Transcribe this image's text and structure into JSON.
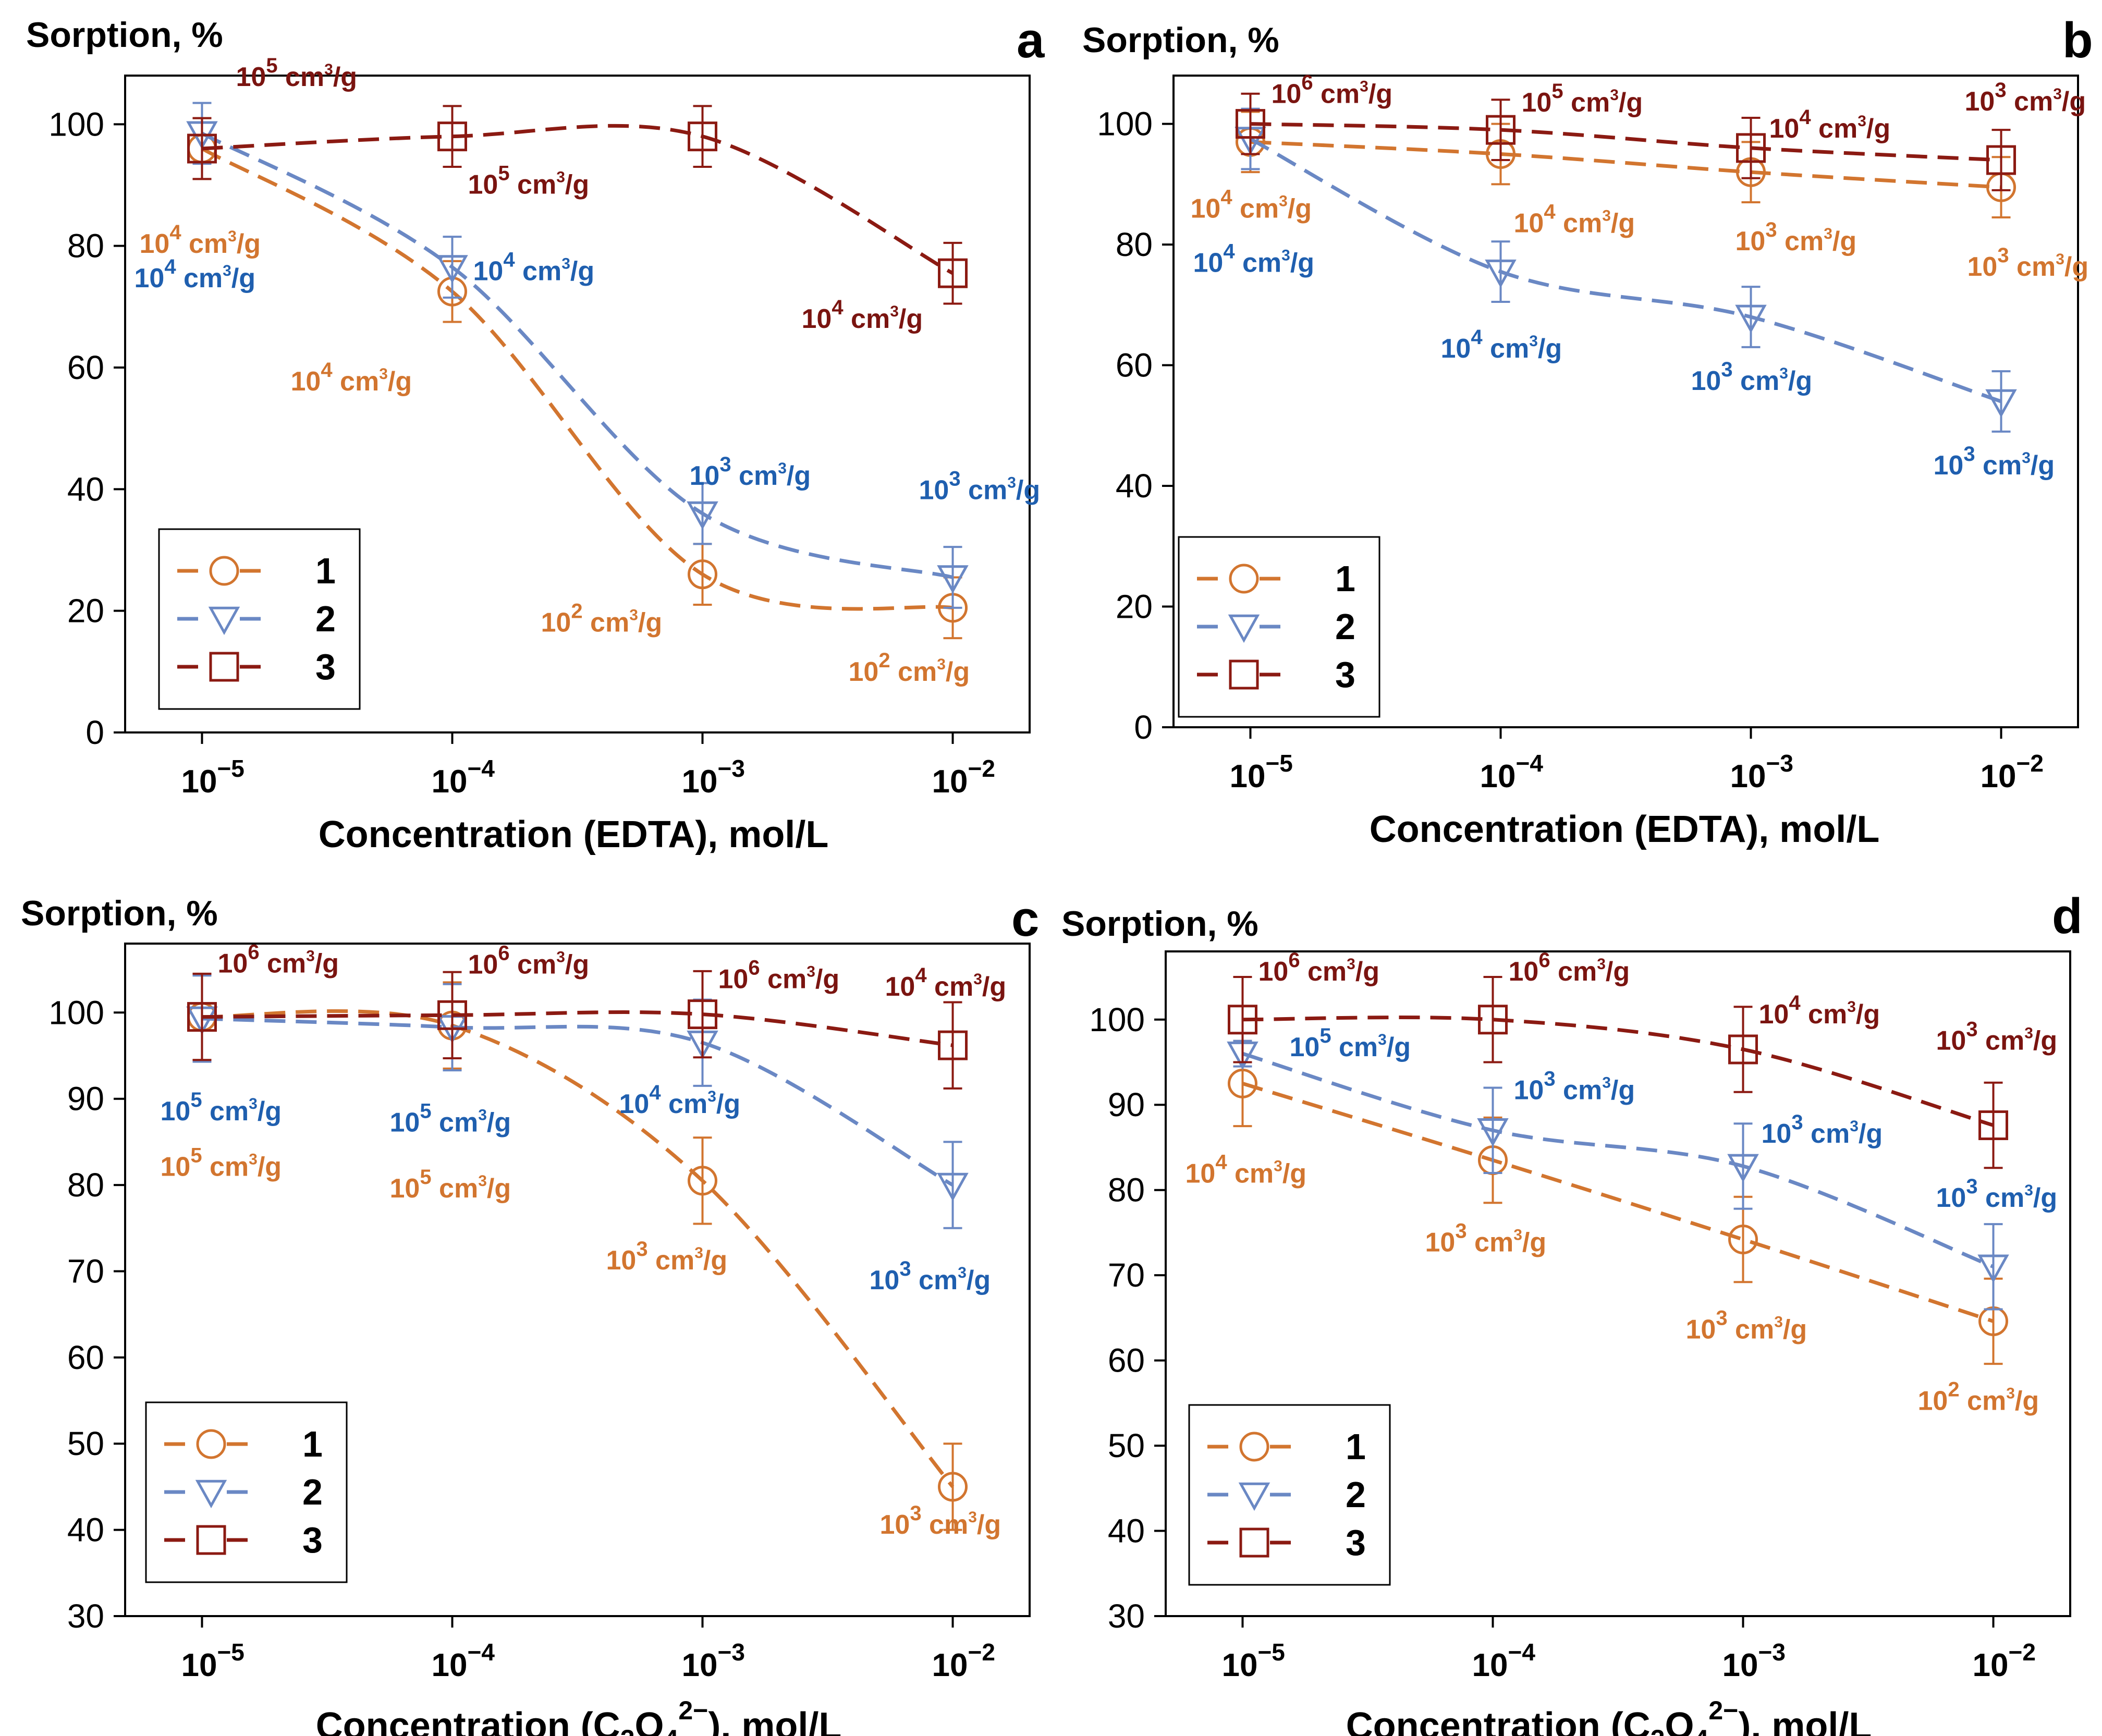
{
  "colors": {
    "series1": "#D2752F",
    "series2": "#6A88C4",
    "series3": "#8B1A12",
    "label1": "#D2752F",
    "label2": "#1F5FAF",
    "label3": "#7A1410",
    "axis": "#000000"
  },
  "chart_data": [
    {
      "panel": "a",
      "type": "line",
      "title": "",
      "ylabel": "Sorption, %",
      "xlabel": "Concentration (EDTA), mol/L",
      "xlabel_parts": {
        "pre": "Concentration (EDTA), mol/L",
        "formula": false
      },
      "x": [
        "10^-5",
        "10^-4",
        "10^-3",
        "10^-2"
      ],
      "x_ticks": [
        {
          "base": "10",
          "exp": "−5"
        },
        {
          "base": "10",
          "exp": "−4"
        },
        {
          "base": "10",
          "exp": "−3"
        },
        {
          "base": "10",
          "exp": "−2"
        }
      ],
      "ylim": [
        0,
        108
      ],
      "yticks": [
        0,
        20,
        40,
        60,
        80,
        100
      ],
      "grid": false,
      "legend": "bottom-left",
      "series": [
        {
          "name": "1",
          "marker": "circle",
          "values": [
            96,
            72.5,
            26,
            20.5
          ],
          "errors": [
            5,
            5,
            5,
            5
          ],
          "labels": [
            {
              "exp": "4",
              "text": "10^4 cm3/g"
            },
            {
              "exp": "4",
              "text": "10^4 cm3/g"
            },
            {
              "exp": "2",
              "text": "10^2 cm3/g"
            },
            {
              "exp": "2",
              "text": "10^2 cm3/g"
            }
          ]
        },
        {
          "name": "2",
          "marker": "triangle-down",
          "values": [
            98.5,
            76.5,
            36,
            25.5
          ],
          "errors": [
            5,
            5,
            5,
            5
          ],
          "labels": [
            {
              "exp": "4",
              "text": "10^4 cm3/g"
            },
            {
              "exp": "4",
              "text": "10^4 cm3/g"
            },
            {
              "exp": "3",
              "text": "10^3 cm3/g"
            },
            {
              "exp": "3",
              "text": "10^3 cm3/g"
            }
          ]
        },
        {
          "name": "3",
          "marker": "square",
          "values": [
            96,
            98,
            98,
            75.5
          ],
          "errors": [
            5,
            5,
            5,
            5
          ],
          "labels": [
            {
              "exp": "5",
              "text": "10^5 cm3/g"
            },
            {
              "exp": "5",
              "text": "10^5 cm3/g"
            },
            null,
            {
              "exp": "4",
              "text": "10^4 cm3/g"
            }
          ]
        }
      ]
    },
    {
      "panel": "b",
      "type": "line",
      "title": "",
      "ylabel": "Sorption, %",
      "xlabel": "Concentration (EDTA), mol/L",
      "x": [
        "10^-5",
        "10^-4",
        "10^-3",
        "10^-2"
      ],
      "x_ticks": [
        {
          "base": "10",
          "exp": "−5"
        },
        {
          "base": "10",
          "exp": "−4"
        },
        {
          "base": "10",
          "exp": "−3"
        },
        {
          "base": "10",
          "exp": "−2"
        }
      ],
      "ylim": [
        0,
        108
      ],
      "yticks": [
        0,
        20,
        40,
        60,
        80,
        100
      ],
      "grid": false,
      "legend": "bottom-left",
      "series": [
        {
          "name": "1",
          "marker": "circle",
          "values": [
            97,
            95,
            92,
            89.5
          ],
          "errors": [
            5,
            5,
            5,
            5
          ],
          "labels": [
            {
              "exp": "4",
              "text": "10^4 cm3/g"
            },
            {
              "exp": "4",
              "text": "10^4 cm3/g"
            },
            {
              "exp": "3",
              "text": "10^3 cm3/g"
            },
            {
              "exp": "3",
              "text": "10^3 cm3/g"
            }
          ]
        },
        {
          "name": "2",
          "marker": "triangle-down",
          "values": [
            97.5,
            75.5,
            68,
            54
          ],
          "errors": [
            5,
            5,
            5,
            5
          ],
          "labels": [
            {
              "exp": "4",
              "text": "10^4 cm3/g"
            },
            {
              "exp": "4",
              "text": "10^4 cm3/g"
            },
            {
              "exp": "3",
              "text": "10^3 cm3/g"
            },
            {
              "exp": "3",
              "text": "10^3 cm3/g"
            }
          ]
        },
        {
          "name": "3",
          "marker": "square",
          "values": [
            100,
            99,
            96,
            94
          ],
          "errors": [
            5,
            5,
            5,
            5
          ],
          "labels": [
            {
              "exp": "6",
              "text": "10^6 cm3/g"
            },
            {
              "exp": "5",
              "text": "10^5 cm3/g"
            },
            {
              "exp": "4",
              "text": "10^4 cm3/g"
            },
            {
              "exp": "3",
              "text": "10^3 cm3/g"
            }
          ]
        }
      ]
    },
    {
      "panel": "c",
      "type": "line",
      "title": "",
      "ylabel": "Sorption, %",
      "xlabel": "Concentration (C2O4 2−), mol/L",
      "x": [
        "10^-5",
        "10^-4",
        "10^-3",
        "10^-2"
      ],
      "x_ticks": [
        {
          "base": "10",
          "exp": "−5"
        },
        {
          "base": "10",
          "exp": "−4"
        },
        {
          "base": "10",
          "exp": "−3"
        },
        {
          "base": "10",
          "exp": "−2"
        }
      ],
      "ylim": [
        30,
        108
      ],
      "yticks": [
        30,
        40,
        50,
        60,
        70,
        80,
        90,
        100
      ],
      "grid": false,
      "legend": "bottom-left",
      "series": [
        {
          "name": "1",
          "marker": "circle",
          "values": [
            99.5,
            98.5,
            80.5,
            45
          ],
          "errors": [
            5,
            5,
            5,
            5
          ],
          "labels": [
            {
              "exp": "5",
              "text": "10^5 cm3/g"
            },
            {
              "exp": "5",
              "text": "10^5 cm3/g"
            },
            {
              "exp": "3",
              "text": "10^3 cm3/g"
            },
            {
              "exp": "3",
              "text": "10^3 cm3/g"
            }
          ]
        },
        {
          "name": "2",
          "marker": "triangle-down",
          "values": [
            99.3,
            98.3,
            96.5,
            80
          ],
          "errors": [
            5,
            5,
            5,
            5
          ],
          "labels": [
            {
              "exp": "5",
              "text": "10^5 cm3/g"
            },
            {
              "exp": "5",
              "text": "10^5 cm3/g"
            },
            {
              "exp": "4",
              "text": "10^4 cm3/g"
            },
            {
              "exp": "3",
              "text": "10^3 cm3/g"
            }
          ]
        },
        {
          "name": "3",
          "marker": "square",
          "values": [
            99.5,
            99.7,
            99.8,
            96.2
          ],
          "errors": [
            5,
            5,
            5,
            5
          ],
          "labels": [
            {
              "exp": "6",
              "text": "10^6 cm3/g"
            },
            {
              "exp": "6",
              "text": "10^6 cm3/g"
            },
            {
              "exp": "6",
              "text": "10^6 cm3/g"
            },
            {
              "exp": "4",
              "text": "10^4 cm3/g"
            }
          ]
        }
      ]
    },
    {
      "panel": "d",
      "type": "line",
      "title": "",
      "ylabel": "Sorption, %",
      "xlabel": "Concentration (C2O4 2−), mol/L",
      "x": [
        "10^-5",
        "10^-4",
        "10^-3",
        "10^-2"
      ],
      "x_ticks": [
        {
          "base": "10",
          "exp": "−5"
        },
        {
          "base": "10",
          "exp": "−4"
        },
        {
          "base": "10",
          "exp": "−3"
        },
        {
          "base": "10",
          "exp": "−2"
        }
      ],
      "ylim": [
        30,
        108
      ],
      "yticks": [
        30,
        40,
        50,
        60,
        70,
        80,
        90,
        100
      ],
      "grid": false,
      "legend": "bottom-left",
      "series": [
        {
          "name": "1",
          "marker": "circle",
          "values": [
            92.5,
            83.5,
            74.2,
            64.6
          ],
          "errors": [
            5,
            5,
            5,
            5
          ],
          "labels": [
            {
              "exp": "4",
              "text": "10^4 cm3/g"
            },
            {
              "exp": "3",
              "text": "10^3 cm3/g"
            },
            {
              "exp": "3",
              "text": "10^3 cm3/g"
            },
            {
              "exp": "2",
              "text": "10^2 cm3/g"
            }
          ]
        },
        {
          "name": "2",
          "marker": "triangle-down",
          "values": [
            96,
            87,
            82.8,
            71
          ],
          "errors": [
            1.5,
            5,
            5,
            5
          ],
          "labels": [
            {
              "exp": "5",
              "text": "10^5 cm3/g"
            },
            {
              "exp": "3",
              "text": "10^3 cm3/g"
            },
            {
              "exp": "3",
              "text": "10^3 cm3/g"
            },
            {
              "exp": "3",
              "text": "10^3 cm3/g"
            }
          ]
        },
        {
          "name": "3",
          "marker": "square",
          "values": [
            100,
            100,
            96.5,
            87.6
          ],
          "errors": [
            5,
            5,
            5,
            5
          ],
          "labels": [
            {
              "exp": "6",
              "text": "10^6 cm3/g"
            },
            {
              "exp": "6",
              "text": "10^6 cm3/g"
            },
            {
              "exp": "4",
              "text": "10^4 cm3/g"
            },
            {
              "exp": "3",
              "text": "10^3 cm3/g"
            }
          ]
        }
      ]
    }
  ],
  "panels": [
    {
      "letter": "a",
      "ylabel": "Sorption, %",
      "xlabel": "Concentration (EDTA), mol/L",
      "xlabel_kind": "edta"
    },
    {
      "letter": "b",
      "ylabel": "Sorption, %",
      "xlabel": "Concentration (EDTA), mol/L",
      "xlabel_kind": "edta"
    },
    {
      "letter": "c",
      "ylabel": "Sorption, %",
      "xlabel": "Concentration (C2O4 2−), mol/L",
      "xlabel_kind": "oxalate"
    },
    {
      "letter": "d",
      "ylabel": "Sorption, %",
      "xlabel": "Concentration (C2O4 2−), mol/L",
      "xlabel_kind": "oxalate"
    }
  ],
  "xlabel_text": {
    "edta": "Concentration (EDTA), mol/L",
    "oxalate_pre": "Concentration (C",
    "oxalate_sub1": "2",
    "oxalate_mid": "O",
    "oxalate_sub2": "4",
    "oxalate_sup": "2−",
    "oxalate_post": "), mol/L"
  },
  "unit_label": {
    "base": "10",
    "unit_mid": " cm",
    "unit_sup": "3",
    "unit_post": "/g"
  },
  "legend_labels": [
    "1",
    "2",
    "3"
  ]
}
